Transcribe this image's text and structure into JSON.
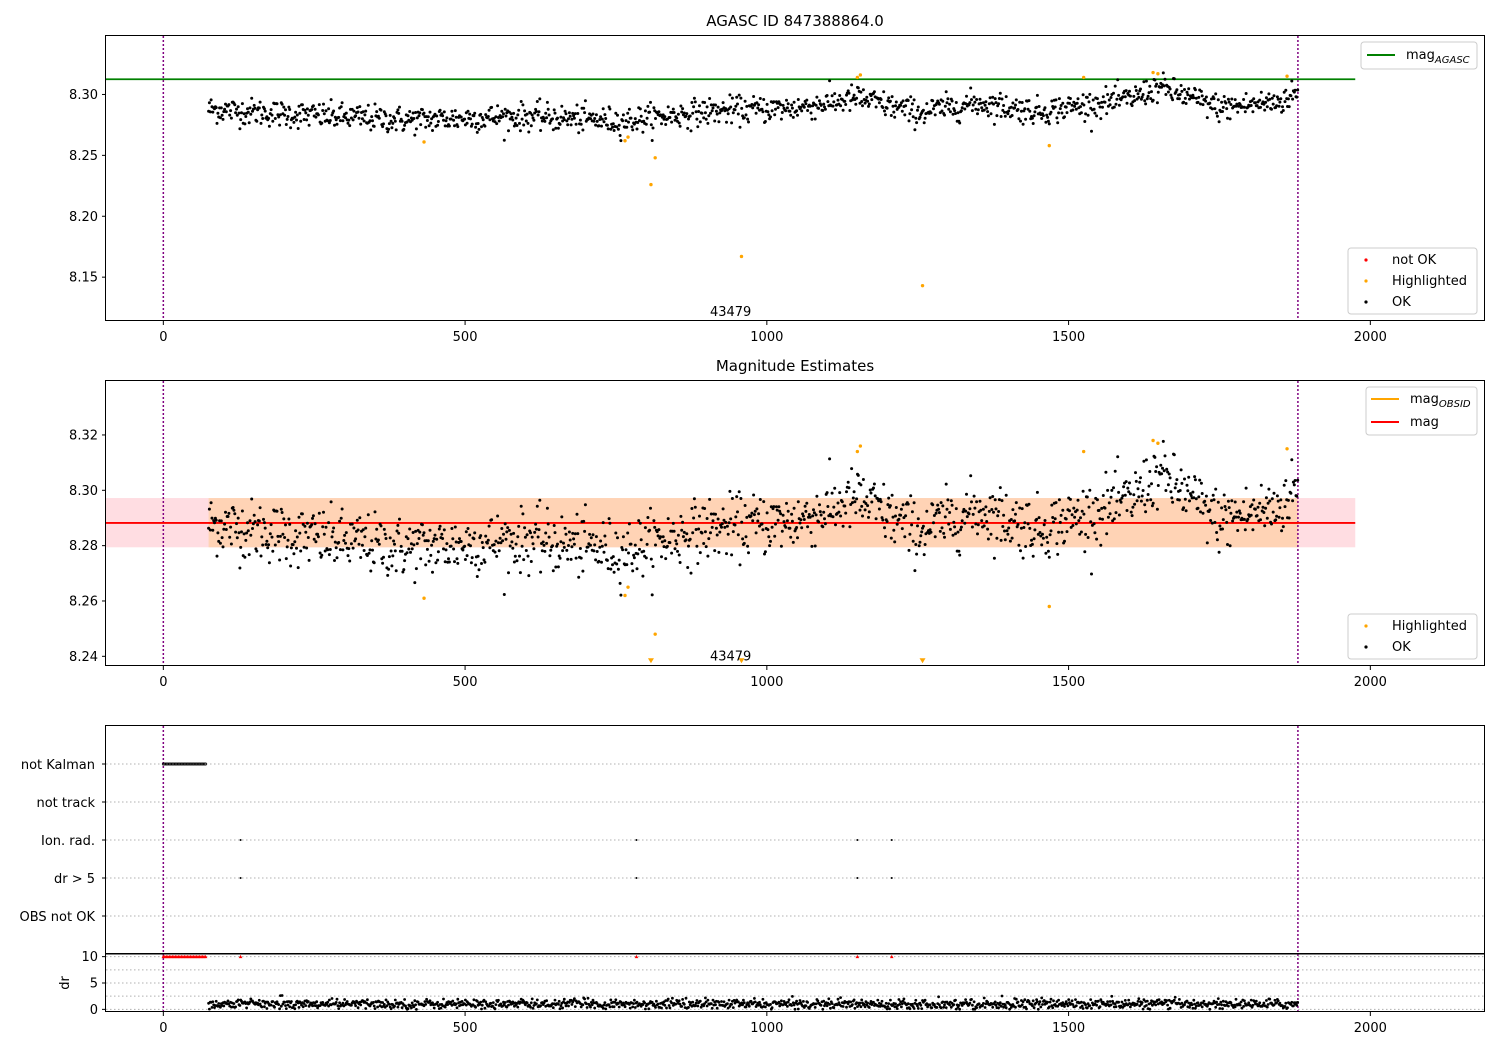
{
  "chart_data": [
    {
      "type": "scatter",
      "title": "AGASC ID 847388864.0",
      "xlabel": "",
      "ylabel": "",
      "xlim": [
        -95,
        2190
      ],
      "ylim": [
        8.114,
        8.348
      ],
      "xticks": [
        0,
        500,
        1000,
        1500,
        2000
      ],
      "yticks": [
        8.15,
        8.2,
        8.25,
        8.3
      ],
      "ytick_labels": [
        "8.15",
        "8.20",
        "8.25",
        "8.30"
      ],
      "vlines": [
        0,
        1880
      ],
      "hline": {
        "name": "mag",
        "subscript": "AGASC",
        "y": 8.3125,
        "x": [
          -95,
          1975
        ],
        "color": "#008000"
      },
      "annotation": {
        "text": "43479",
        "x": 940,
        "y": 8.118
      },
      "x_range": [
        75,
        1880
      ],
      "trend": {
        "x": [
          75,
          200,
          400,
          600,
          760,
          900,
          1050,
          1150,
          1250,
          1350,
          1450,
          1600,
          1650,
          1750,
          1850,
          1880
        ],
        "y": [
          8.288,
          8.284,
          8.279,
          8.282,
          8.278,
          8.286,
          8.289,
          8.297,
          8.285,
          8.293,
          8.286,
          8.296,
          8.306,
          8.289,
          8.294,
          8.302
        ]
      },
      "scatter_noise": 0.0055,
      "highlighted": {
        "x": [
          432,
          765,
          770,
          808,
          815,
          958,
          1150,
          1155,
          1258,
          1468,
          1525,
          1640,
          1648,
          1862
        ],
        "y": [
          8.261,
          8.262,
          8.265,
          8.226,
          8.248,
          8.167,
          8.314,
          8.316,
          8.143,
          8.258,
          8.314,
          8.318,
          8.317,
          8.315
        ]
      },
      "legend_main": [
        "mag",
        "AGASC"
      ],
      "legend": [
        "not OK",
        "Highlighted",
        "OK"
      ],
      "colors": {
        "ok": "#000000",
        "highlighted": "#ffa500",
        "not_ok": "#ff0000",
        "vline": "#800080"
      }
    },
    {
      "type": "scatter",
      "title": "Magnitude Estimates",
      "xlabel": "",
      "ylabel": "",
      "xlim": [
        -95,
        2190
      ],
      "ylim": [
        8.2365,
        8.3395
      ],
      "xticks": [
        0,
        500,
        1000,
        1500,
        2000
      ],
      "yticks": [
        8.24,
        8.26,
        8.28,
        8.3,
        8.32
      ],
      "ytick_labels": [
        "8.24",
        "8.26",
        "8.28",
        "8.30",
        "8.32"
      ],
      "vlines": [
        0,
        1880
      ],
      "mag_line": {
        "name": "mag",
        "y": 8.2882,
        "x": [
          -95,
          1975
        ],
        "band": [
          8.2794,
          8.2972
        ],
        "color": "#ff0000"
      },
      "obsid_line": {
        "name": "mag",
        "subscript": "OBSID",
        "y": 8.2882,
        "x": [
          75,
          1880
        ],
        "band": [
          8.2794,
          8.2972
        ],
        "color": "#ffa500"
      },
      "annotation": {
        "text": "43479",
        "x": 940,
        "y": 8.2385
      },
      "highlighted_markers": {
        "x": [
          808,
          958,
          1258
        ],
        "y": [
          8.2382,
          8.2382,
          8.2382
        ]
      },
      "legend_lines": [
        [
          "mag",
          "OBSID"
        ],
        [
          "mag",
          ""
        ]
      ],
      "legend": [
        "Highlighted",
        "OK"
      ],
      "colors": {
        "band_mag": "#ffdde2",
        "band_obsid": "#ffd3b5"
      }
    },
    {
      "type": "scatter",
      "title": "",
      "xlim": [
        -95,
        2190
      ],
      "xticks": [
        0,
        500,
        1000,
        1500,
        2000
      ],
      "categories": [
        "not Kalman",
        "not track",
        "Ion. rad.",
        "dr > 5",
        "OBS not OK"
      ],
      "not_kalman_x_range": [
        0,
        70
      ],
      "ion_rad_x": [
        128,
        784,
        1150,
        1207
      ],
      "dr_gt5_x": [
        128,
        784,
        1150,
        1207
      ],
      "vlines": [
        0,
        1880
      ]
    },
    {
      "type": "scatter",
      "title": "",
      "xlabel": "",
      "ylabel": "dr",
      "xlim": [
        -95,
        2190
      ],
      "ylim": [
        -0.5,
        10.5
      ],
      "xticks": [
        0,
        500,
        1000,
        1500,
        2000
      ],
      "yticks": [
        0,
        5,
        10
      ],
      "ytick_labels": [
        "0",
        "5",
        "10"
      ],
      "capped_x": [
        128,
        784,
        1150,
        1207
      ],
      "capped_range": [
        0,
        70
      ],
      "dr_typical": 1.0,
      "vlines": [
        0,
        1880
      ]
    }
  ]
}
